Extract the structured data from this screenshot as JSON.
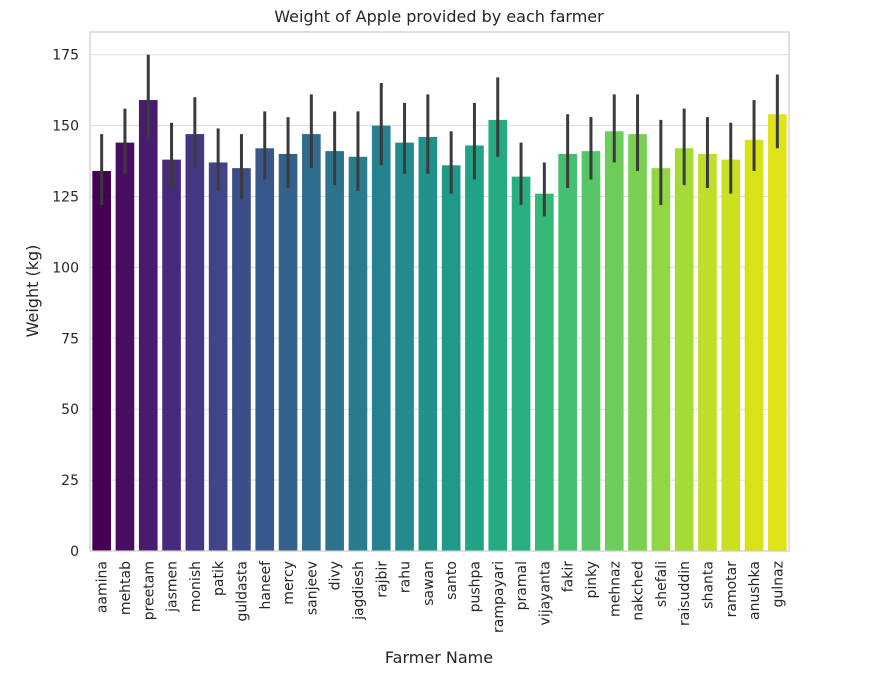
{
  "chart_data": {
    "type": "bar",
    "title": "Weight of Apple provided by each farmer",
    "xlabel": "Farmer Name",
    "ylabel": "Weight (kg)",
    "ylim": [
      0,
      183
    ],
    "yticks": [
      0,
      25,
      50,
      75,
      100,
      125,
      150,
      175
    ],
    "grid": "horizontal",
    "categories": [
      "aamina",
      "mehtab",
      "preetam",
      "jasmen",
      "monish",
      "patik",
      "guldasta",
      "haneef",
      "mercy",
      "sanjeev",
      "divy",
      "jagdiesh",
      "rajbir",
      "rahu",
      "sawan",
      "santo",
      "pushpa",
      "rampayari",
      "pramal",
      "vijayanta",
      "fakir",
      "pinky",
      "mehnaz",
      "nakched",
      "shefali",
      "raisuddin",
      "shanta",
      "ramotar",
      "anushka",
      "gulnaz"
    ],
    "values": [
      134,
      144,
      159,
      138,
      147,
      137,
      135,
      142,
      140,
      147,
      141,
      139,
      150,
      144,
      146,
      136,
      143,
      152,
      132,
      126,
      140,
      141,
      148,
      147,
      135,
      142,
      140,
      138,
      145,
      154
    ],
    "error_low": [
      122,
      133,
      145,
      128,
      135,
      127,
      124,
      131,
      128,
      135,
      129,
      127,
      136,
      133,
      133,
      126,
      131,
      139,
      122,
      118,
      128,
      131,
      137,
      134,
      122,
      129,
      128,
      126,
      134,
      142
    ],
    "error_high": [
      147,
      156,
      175,
      151,
      160,
      149,
      147,
      155,
      153,
      161,
      155,
      155,
      165,
      158,
      161,
      148,
      158,
      167,
      144,
      137,
      154,
      153,
      161,
      161,
      152,
      156,
      153,
      151,
      159,
      168
    ],
    "colors": [
      "#440154",
      "#470e61",
      "#481b6d",
      "#472a7a",
      "#453781",
      "#414487",
      "#3d4d8a",
      "#38588c",
      "#33628d",
      "#2f6c8e",
      "#2c738e",
      "#297b8e",
      "#26828e",
      "#238a8d",
      "#21918c",
      "#1f998a",
      "#20a386",
      "#25ab82",
      "#29af7f",
      "#36b878",
      "#44bf70",
      "#56c667",
      "#6ccd5a",
      "#7ad151",
      "#90d743",
      "#a5db36",
      "#bddf26",
      "#cae11f",
      "#d8e219",
      "#e0e318"
    ]
  }
}
